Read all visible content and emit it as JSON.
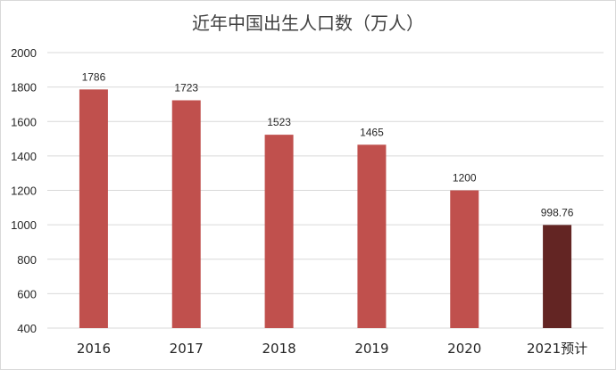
{
  "chart_data": {
    "type": "bar",
    "title": "近年中国出生人口数（万人）",
    "categories": [
      "2016",
      "2017",
      "2018",
      "2019",
      "2020",
      "2021预计"
    ],
    "values": [
      1786,
      1723,
      1523,
      1465,
      1200,
      998.76
    ],
    "data_labels": [
      "1786",
      "1723",
      "1523",
      "1465",
      "1200",
      "998.76"
    ],
    "ylim": [
      400,
      2000
    ],
    "yticks": [
      400,
      600,
      800,
      1000,
      1200,
      1400,
      1600,
      1800,
      2000
    ],
    "grid": true,
    "legend": "none",
    "colors": {
      "bar": "#c0504d",
      "highlight_bar": "#632523",
      "grid": "#d9d9d9"
    },
    "highlight_index": 5
  }
}
